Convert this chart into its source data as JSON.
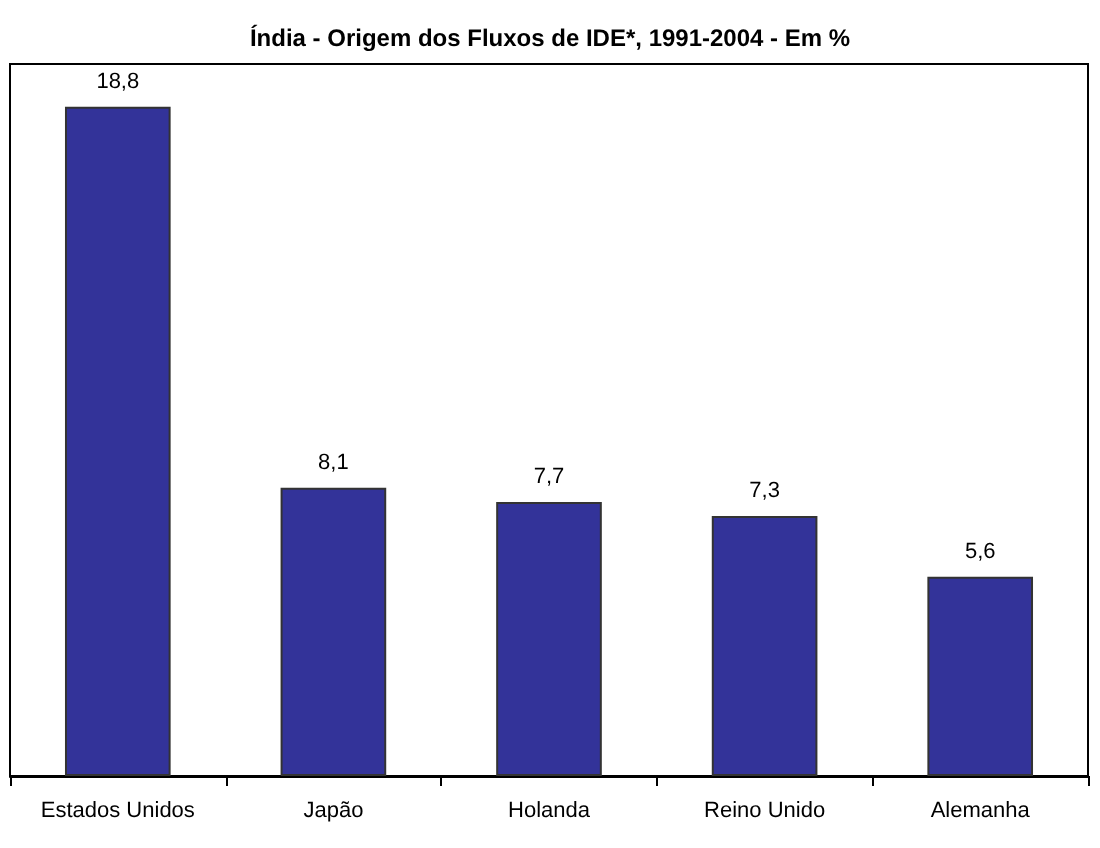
{
  "chart_data": {
    "type": "bar",
    "title": "Índia - Origem dos Fluxos de IDE*, 1991-2004 - Em %",
    "categories": [
      "Estados Unidos",
      "Japão",
      "Holanda",
      "Reino Unido",
      "Alemanha"
    ],
    "values": [
      18.8,
      8.1,
      7.7,
      7.3,
      5.6
    ],
    "value_labels": [
      "18,8",
      "8,1",
      "7,7",
      "7,3",
      "5,6"
    ],
    "color": "#333399",
    "ylim": [
      0,
      20
    ],
    "tick_labels": "x",
    "grid": false
  }
}
